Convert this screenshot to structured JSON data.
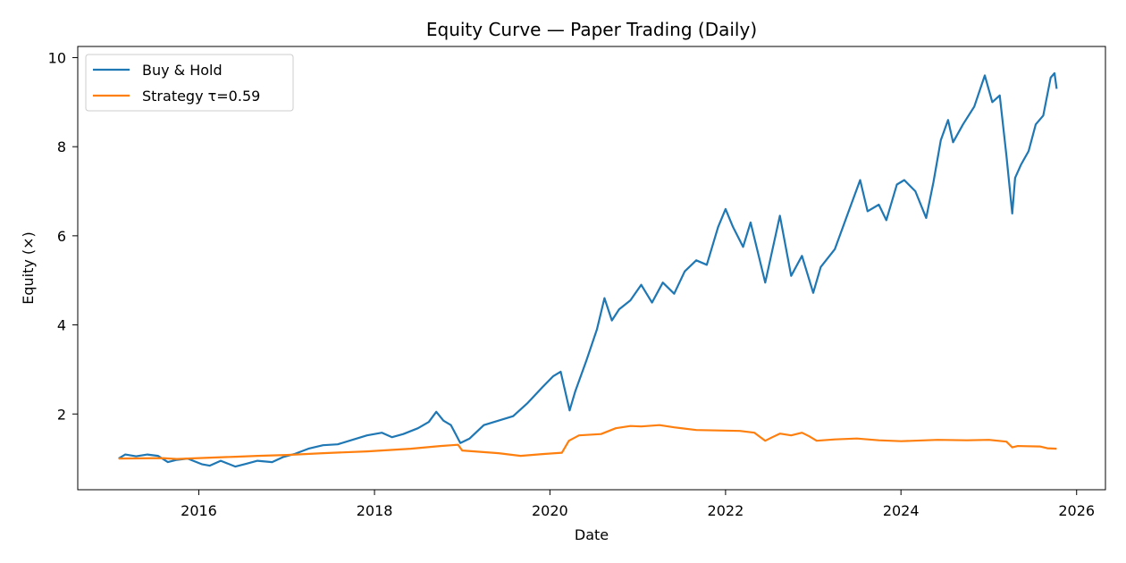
{
  "chart_data": {
    "type": "line",
    "title": "Equity Curve — Paper Trading (Daily)",
    "xlabel": "Date",
    "ylabel": "Equity (×)",
    "x_ticks": [
      "2016",
      "2018",
      "2020",
      "2022",
      "2024",
      "2026"
    ],
    "y_ticks": [
      "2",
      "4",
      "6",
      "8",
      "10"
    ],
    "xlim": [
      "2014-08-15",
      "2026-05-01"
    ],
    "ylim": [
      0.3,
      10.25
    ],
    "grid": false,
    "legend_position": "top-left",
    "series": [
      {
        "name": "Buy & Hold",
        "color": "#1f77b4",
        "points": [
          [
            "2015-02-01",
            1.0
          ],
          [
            "2015-03-01",
            1.09
          ],
          [
            "2015-04-15",
            1.05
          ],
          [
            "2015-06-01",
            1.09
          ],
          [
            "2015-07-15",
            1.06
          ],
          [
            "2015-08-25",
            0.92
          ],
          [
            "2015-10-01",
            0.97
          ],
          [
            "2015-11-15",
            1.0
          ],
          [
            "2016-01-15",
            0.87
          ],
          [
            "2016-02-15",
            0.84
          ],
          [
            "2016-04-01",
            0.95
          ],
          [
            "2016-06-01",
            0.82
          ],
          [
            "2016-07-15",
            0.88
          ],
          [
            "2016-09-01",
            0.95
          ],
          [
            "2016-11-01",
            0.92
          ],
          [
            "2016-12-15",
            1.03
          ],
          [
            "2017-02-01",
            1.1
          ],
          [
            "2017-04-01",
            1.22
          ],
          [
            "2017-06-01",
            1.3
          ],
          [
            "2017-08-01",
            1.32
          ],
          [
            "2017-10-01",
            1.42
          ],
          [
            "2017-12-01",
            1.52
          ],
          [
            "2018-02-01",
            1.58
          ],
          [
            "2018-03-15",
            1.48
          ],
          [
            "2018-05-01",
            1.55
          ],
          [
            "2018-07-01",
            1.68
          ],
          [
            "2018-08-15",
            1.82
          ],
          [
            "2018-09-15",
            2.05
          ],
          [
            "2018-10-15",
            1.85
          ],
          [
            "2018-11-15",
            1.75
          ],
          [
            "2018-12-24",
            1.35
          ],
          [
            "2019-02-01",
            1.45
          ],
          [
            "2019-04-01",
            1.75
          ],
          [
            "2019-06-01",
            1.85
          ],
          [
            "2019-08-01",
            1.95
          ],
          [
            "2019-10-01",
            2.25
          ],
          [
            "2019-12-01",
            2.6
          ],
          [
            "2020-01-15",
            2.85
          ],
          [
            "2020-02-15",
            2.95
          ],
          [
            "2020-03-23",
            2.08
          ],
          [
            "2020-04-15",
            2.5
          ],
          [
            "2020-06-01",
            3.2
          ],
          [
            "2020-07-15",
            3.9
          ],
          [
            "2020-08-15",
            4.6
          ],
          [
            "2020-09-15",
            4.1
          ],
          [
            "2020-10-15",
            4.35
          ],
          [
            "2020-12-01",
            4.55
          ],
          [
            "2021-01-15",
            4.9
          ],
          [
            "2021-03-01",
            4.5
          ],
          [
            "2021-04-15",
            4.95
          ],
          [
            "2021-06-01",
            4.7
          ],
          [
            "2021-07-15",
            5.2
          ],
          [
            "2021-09-01",
            5.45
          ],
          [
            "2021-10-15",
            5.35
          ],
          [
            "2021-12-01",
            6.2
          ],
          [
            "2022-01-01",
            6.6
          ],
          [
            "2022-02-01",
            6.2
          ],
          [
            "2022-03-15",
            5.75
          ],
          [
            "2022-04-15",
            6.3
          ],
          [
            "2022-06-15",
            4.95
          ],
          [
            "2022-08-15",
            6.45
          ],
          [
            "2022-10-01",
            5.1
          ],
          [
            "2022-11-15",
            5.55
          ],
          [
            "2023-01-01",
            4.72
          ],
          [
            "2023-02-01",
            5.3
          ],
          [
            "2023-04-01",
            5.7
          ],
          [
            "2023-06-01",
            6.6
          ],
          [
            "2023-07-15",
            7.25
          ],
          [
            "2023-08-15",
            6.55
          ],
          [
            "2023-10-01",
            6.7
          ],
          [
            "2023-11-01",
            6.35
          ],
          [
            "2023-12-15",
            7.15
          ],
          [
            "2024-01-15",
            7.25
          ],
          [
            "2024-03-01",
            7.0
          ],
          [
            "2024-04-15",
            6.4
          ],
          [
            "2024-05-15",
            7.2
          ],
          [
            "2024-06-15",
            8.15
          ],
          [
            "2024-07-15",
            8.6
          ],
          [
            "2024-08-05",
            8.1
          ],
          [
            "2024-09-15",
            8.5
          ],
          [
            "2024-11-01",
            8.9
          ],
          [
            "2024-12-15",
            9.6
          ],
          [
            "2025-01-15",
            9.0
          ],
          [
            "2025-02-15",
            9.15
          ],
          [
            "2025-03-15",
            7.8
          ],
          [
            "2025-04-08",
            6.5
          ],
          [
            "2025-04-20",
            7.3
          ],
          [
            "2025-05-15",
            7.6
          ],
          [
            "2025-06-15",
            7.9
          ],
          [
            "2025-07-15",
            8.5
          ],
          [
            "2025-08-15",
            8.7
          ],
          [
            "2025-09-15",
            9.55
          ],
          [
            "2025-10-01",
            9.65
          ],
          [
            "2025-10-10",
            9.3
          ]
        ]
      },
      {
        "name": "Strategy τ=0.59",
        "color": "#ff7f0e",
        "points": [
          [
            "2015-02-01",
            1.0
          ],
          [
            "2015-08-01",
            1.01
          ],
          [
            "2015-10-01",
            0.99
          ],
          [
            "2016-01-01",
            1.01
          ],
          [
            "2016-06-01",
            1.04
          ],
          [
            "2016-09-01",
            1.06
          ],
          [
            "2017-01-01",
            1.08
          ],
          [
            "2017-06-01",
            1.12
          ],
          [
            "2017-12-01",
            1.16
          ],
          [
            "2018-06-01",
            1.22
          ],
          [
            "2018-10-01",
            1.28
          ],
          [
            "2018-12-15",
            1.31
          ],
          [
            "2019-01-01",
            1.18
          ],
          [
            "2019-06-01",
            1.12
          ],
          [
            "2019-09-01",
            1.06
          ],
          [
            "2019-12-01",
            1.1
          ],
          [
            "2020-02-20",
            1.13
          ],
          [
            "2020-03-20",
            1.4
          ],
          [
            "2020-05-01",
            1.52
          ],
          [
            "2020-08-01",
            1.55
          ],
          [
            "2020-10-01",
            1.68
          ],
          [
            "2020-12-01",
            1.73
          ],
          [
            "2021-01-15",
            1.72
          ],
          [
            "2021-04-01",
            1.75
          ],
          [
            "2021-06-01",
            1.7
          ],
          [
            "2021-09-01",
            1.64
          ],
          [
            "2021-12-01",
            1.63
          ],
          [
            "2022-03-01",
            1.62
          ],
          [
            "2022-05-01",
            1.58
          ],
          [
            "2022-06-15",
            1.4
          ],
          [
            "2022-07-15",
            1.48
          ],
          [
            "2022-08-15",
            1.56
          ],
          [
            "2022-10-01",
            1.52
          ],
          [
            "2022-11-15",
            1.58
          ],
          [
            "2022-12-15",
            1.5
          ],
          [
            "2023-01-15",
            1.4
          ],
          [
            "2023-04-01",
            1.43
          ],
          [
            "2023-07-01",
            1.45
          ],
          [
            "2023-10-01",
            1.41
          ],
          [
            "2024-01-01",
            1.39
          ],
          [
            "2024-06-01",
            1.42
          ],
          [
            "2024-10-01",
            1.41
          ],
          [
            "2025-01-01",
            1.42
          ],
          [
            "2025-03-15",
            1.38
          ],
          [
            "2025-04-08",
            1.25
          ],
          [
            "2025-05-01",
            1.28
          ],
          [
            "2025-08-01",
            1.27
          ],
          [
            "2025-09-01",
            1.23
          ],
          [
            "2025-10-10",
            1.22
          ]
        ]
      }
    ]
  }
}
